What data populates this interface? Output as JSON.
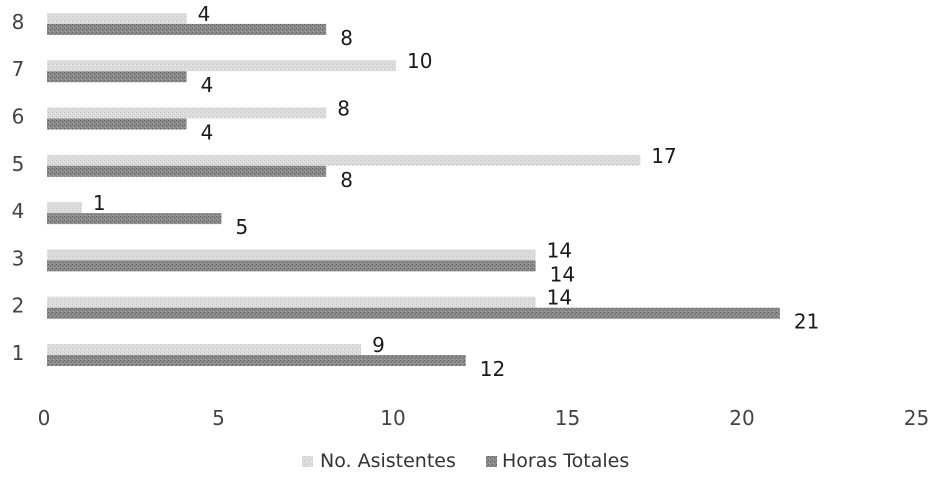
{
  "chart_data": {
    "type": "bar",
    "orientation": "horizontal",
    "categories": [
      "1",
      "2",
      "3",
      "4",
      "5",
      "6",
      "7",
      "8"
    ],
    "series": [
      {
        "name": "No. Asistentes",
        "values": [
          9,
          14,
          14,
          1,
          17,
          8,
          10,
          4
        ],
        "color": "#d9d9d9"
      },
      {
        "name": "Horas Totales",
        "values": [
          12,
          21,
          14,
          5,
          8,
          4,
          4,
          8
        ],
        "color": "#8a8a8a"
      }
    ],
    "xlim": [
      0,
      25
    ],
    "xticks": [
      "0",
      "5",
      "10",
      "15",
      "20",
      "25"
    ],
    "title": "",
    "xlabel": "",
    "ylabel": "",
    "grid": false,
    "legend_position": "bottom",
    "data_labels": true
  }
}
